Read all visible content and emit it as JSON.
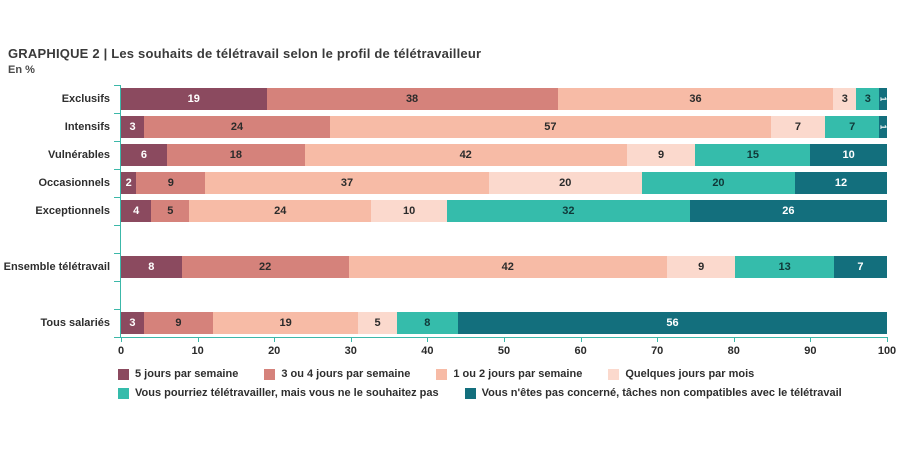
{
  "header": {
    "title": "GRAPHIQUE 2 | Les souhaits de télétravail selon le profil de télétravailleur",
    "unit_label": "En %"
  },
  "colors": {
    "axis": "#3cb8a9",
    "series_1": "#8b4a5f",
    "series_2": "#d5827b",
    "series_3": "#f7bba6",
    "series_4": "#fbd9cd",
    "series_5": "#35bcab",
    "series_6": "#136f7d"
  },
  "chart_data": {
    "type": "bar",
    "orientation": "horizontal",
    "stacked": true,
    "title": "GRAPHIQUE 2 | Les souhaits de télétravail selon le profil de télétravailleur",
    "subtitle": "En %",
    "categories": [
      "Exclusifs",
      "Intensifs",
      "Vulnérables",
      "Occasionnels",
      "Exceptionnels",
      "Ensemble télétravail",
      "Tous salariés"
    ],
    "slot_index": [
      0,
      1,
      2,
      3,
      4,
      6,
      8
    ],
    "series": [
      {
        "name": "5 jours par semaine",
        "color": "#8b4a5f",
        "text_color": "#ffffff",
        "values": [
          19,
          3,
          6,
          2,
          4,
          8,
          3
        ]
      },
      {
        "name": "3 ou 4 jours par semaine",
        "color": "#d5827b",
        "text_color": "#2b2b2b",
        "values": [
          38,
          24,
          18,
          9,
          5,
          22,
          9
        ]
      },
      {
        "name": "1 ou 2 jours par semaine",
        "color": "#f7bba6",
        "text_color": "#2b2b2b",
        "values": [
          36,
          57,
          42,
          37,
          24,
          42,
          19
        ]
      },
      {
        "name": "Quelques jours par mois",
        "color": "#fbd9cd",
        "text_color": "#2b2b2b",
        "values": [
          3,
          7,
          9,
          20,
          10,
          9,
          5
        ]
      },
      {
        "name": "Vous pourriez télétravailler, mais vous ne le souhaitez pas",
        "color": "#35bcab",
        "text_color": "#103838",
        "values": [
          3,
          7,
          15,
          20,
          32,
          13,
          8
        ]
      },
      {
        "name": "Vous n'êtes pas concerné, tâches non compatibles avec le télétravail",
        "color": "#136f7d",
        "text_color": "#ffffff",
        "values": [
          1,
          1,
          10,
          12,
          26,
          7,
          56
        ]
      }
    ],
    "xlim": [
      0,
      100
    ],
    "x_ticks": [
      0,
      10,
      20,
      30,
      40,
      50,
      60,
      70,
      80,
      90,
      100
    ],
    "legend_position": "bottom",
    "legend_rows": [
      [
        0,
        1,
        2,
        3
      ],
      [
        4,
        5
      ]
    ]
  }
}
